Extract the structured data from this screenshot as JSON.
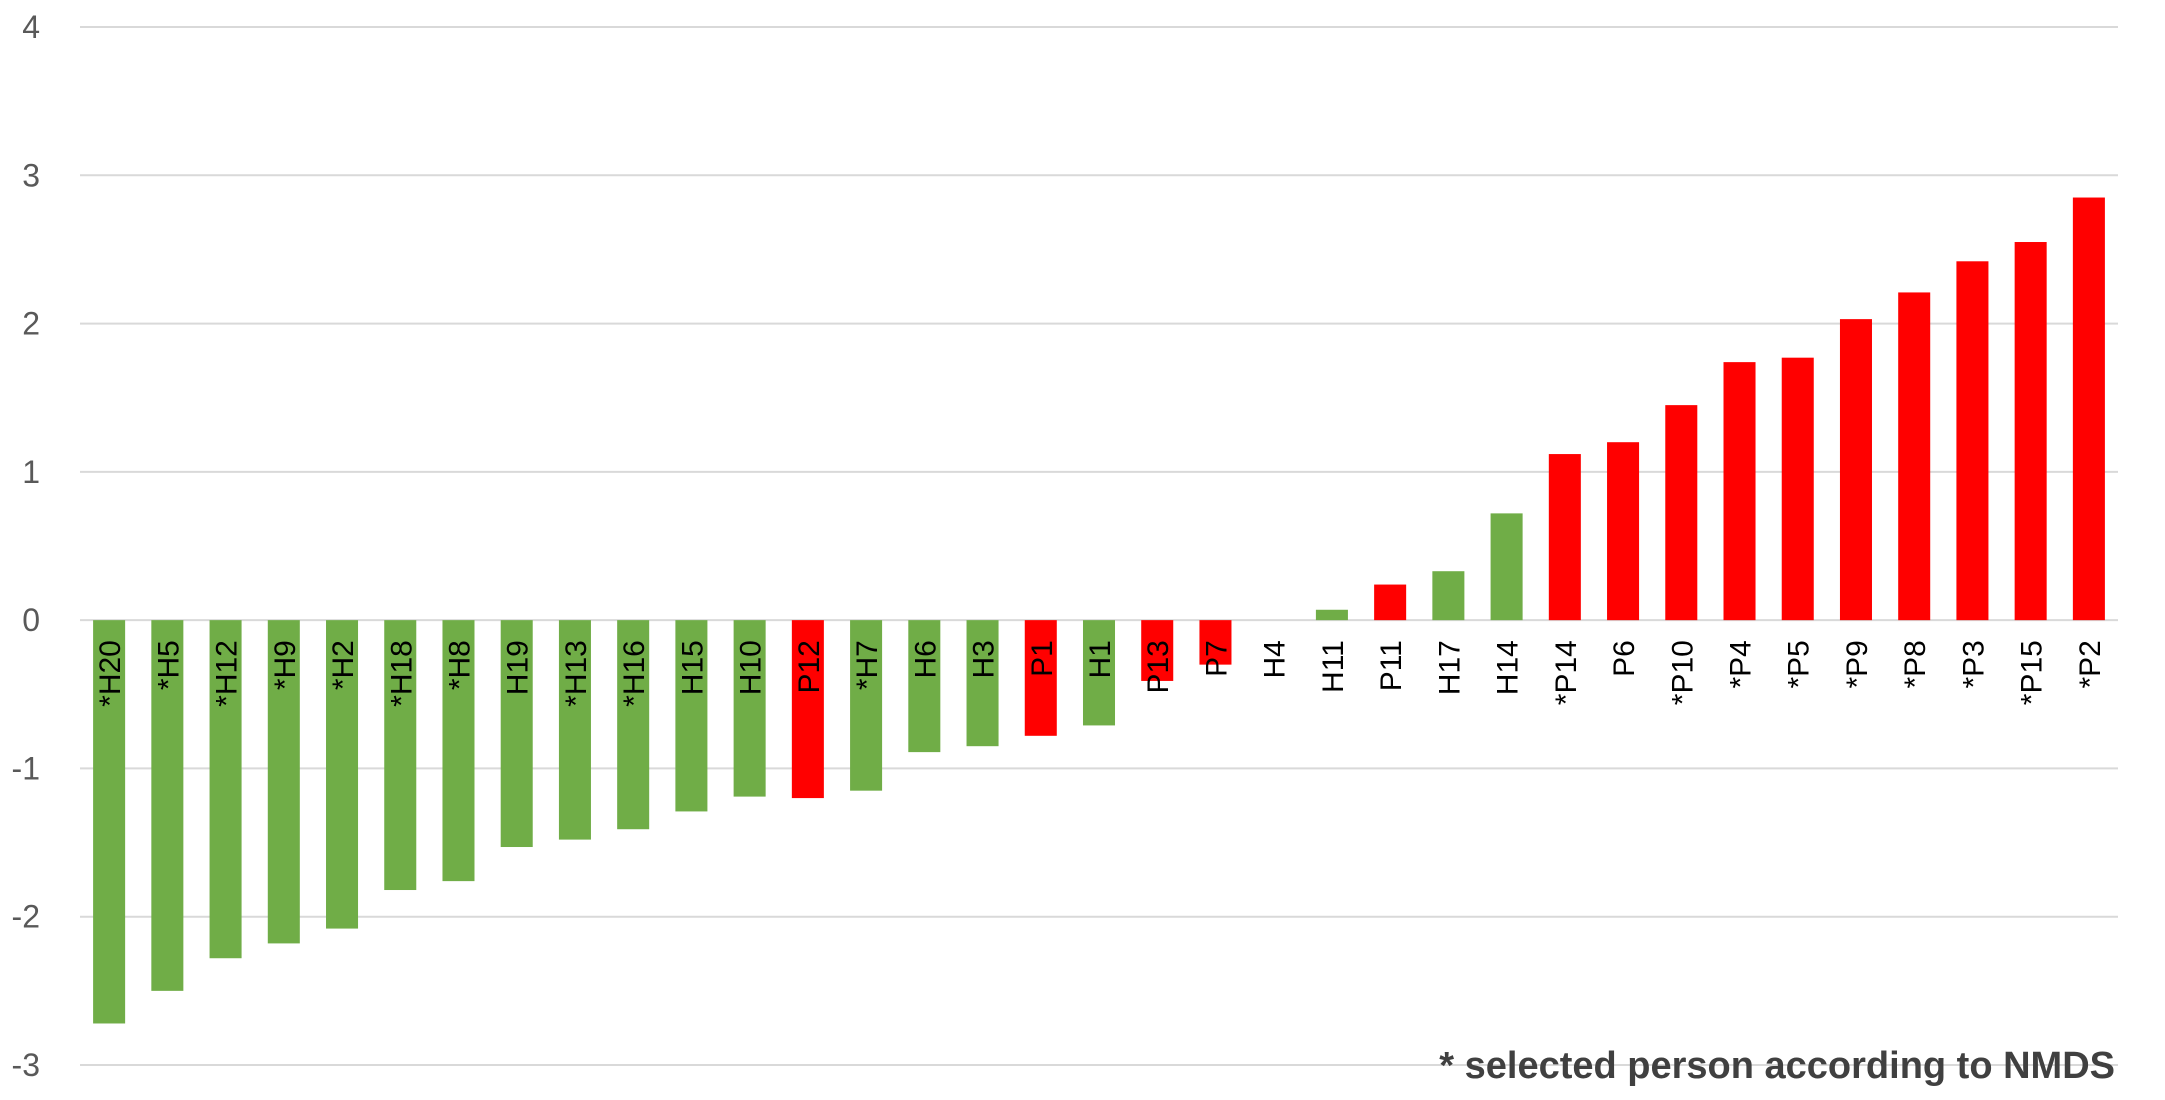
{
  "chart_data": {
    "type": "bar",
    "title": "",
    "xlabel": "",
    "ylabel": "",
    "ylim": [
      -3,
      4
    ],
    "yticks": [
      -3,
      -2,
      -1,
      0,
      1,
      2,
      3,
      4
    ],
    "grid": true,
    "categories": [
      "*H20",
      "*H5",
      "*H12",
      "*H9",
      "*H2",
      "*H18",
      "*H8",
      "H19",
      "*H13",
      "*H16",
      "H15",
      "H10",
      "P12",
      "*H7",
      "H6",
      "H3",
      "P1",
      "H1",
      "P13",
      "P7",
      "H4",
      "H11",
      "P11",
      "H17",
      "H14",
      "*P14",
      "P6",
      "*P10",
      "*P4",
      "*P5",
      "*P9",
      "*P8",
      "*P3",
      "*P15",
      "*P2"
    ],
    "values": [
      -2.72,
      -2.5,
      -2.28,
      -2.18,
      -2.08,
      -1.82,
      -1.76,
      -1.53,
      -1.48,
      -1.41,
      -1.29,
      -1.19,
      -1.2,
      -1.15,
      -0.89,
      -0.85,
      -0.78,
      -0.71,
      -0.41,
      -0.3,
      0.0,
      0.07,
      0.24,
      0.33,
      0.72,
      1.12,
      1.2,
      1.45,
      1.74,
      1.77,
      2.03,
      2.21,
      2.42,
      2.55,
      2.85
    ],
    "groups": [
      "H",
      "H",
      "H",
      "H",
      "H",
      "H",
      "H",
      "H",
      "H",
      "H",
      "H",
      "H",
      "P",
      "H",
      "H",
      "H",
      "P",
      "H",
      "P",
      "P",
      "H",
      "H",
      "P",
      "H",
      "H",
      "P",
      "P",
      "P",
      "P",
      "P",
      "P",
      "P",
      "P",
      "P",
      "P"
    ],
    "colors": {
      "H": "#70ad47",
      "P": "#ff0000",
      "grid": "#d9d9d9"
    },
    "annotation": "* selected person according to NMDS"
  }
}
